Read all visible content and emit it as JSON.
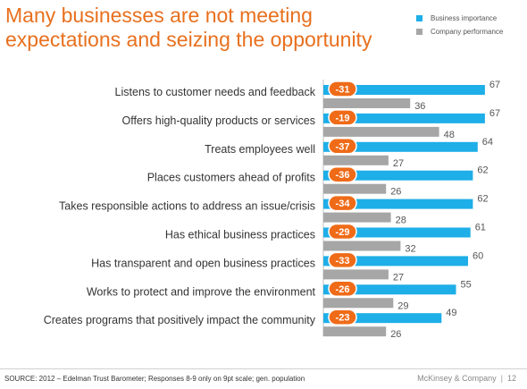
{
  "title": "Many businesses are not meeting expectations and seizing the opportunity",
  "footer": {
    "source": "SOURCE: 2012 – Edelman Trust Barometer; Responses 8-9 only on 9pt scale; gen. population",
    "brand": "McKinsey & Company",
    "page_number": "12"
  },
  "chart_data": {
    "type": "bar",
    "orientation": "horizontal",
    "title": "Many businesses are not meeting expectations and seizing the opportunity",
    "xlim": [
      0,
      100
    ],
    "axis_labels_shown": false,
    "grid": false,
    "legend_position": "top-right",
    "colors": {
      "Business importance": "#1eaee8",
      "Company performance": "#a6a6a6",
      "gap_badge": "#ef6b18",
      "title": "#e8701e"
    },
    "categories": [
      "Listens to customer needs and feedback",
      "Offers high-quality products or services",
      "Treats employees well",
      "Places customers ahead of profits",
      "Takes responsible actions to address an issue/crisis",
      "Has ethical business practices",
      "Has transparent and open business practices",
      "Works to protect and improve the environment",
      "Creates programs that positively impact the community"
    ],
    "series": [
      {
        "name": "Business importance",
        "values": [
          67,
          67,
          64,
          62,
          62,
          61,
          60,
          55,
          49
        ]
      },
      {
        "name": "Company performance",
        "values": [
          36,
          48,
          27,
          26,
          28,
          32,
          27,
          29,
          26
        ]
      }
    ],
    "gap_labels": [
      "-31",
      "-19",
      "-37",
      "-36",
      "-34",
      "-29",
      "-33",
      "-26",
      "-23"
    ]
  }
}
